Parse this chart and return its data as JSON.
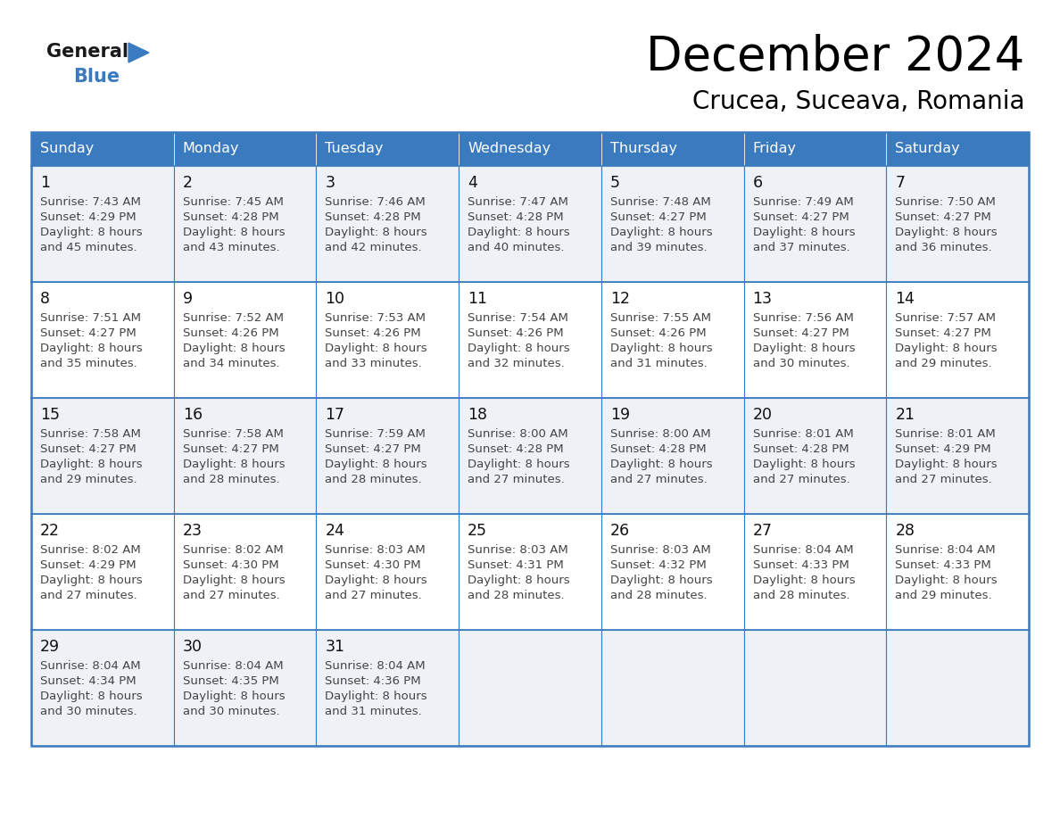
{
  "title": "December 2024",
  "subtitle": "Crucea, Suceava, Romania",
  "header_bg": "#3a7abf",
  "header_text": "#ffffff",
  "day_names": [
    "Sunday",
    "Monday",
    "Tuesday",
    "Wednesday",
    "Thursday",
    "Friday",
    "Saturday"
  ],
  "row_bg_even": "#eef2f7",
  "row_bg_odd": "#ffffff",
  "border_color": "#3a7abf",
  "text_color": "#444444",
  "day_num_color": "#111111",
  "logo_general_color": "#1a1a1a",
  "logo_blue_color": "#3a7abf",
  "cells": [
    {
      "day": 1,
      "row": 0,
      "col": 0,
      "sunrise": "7:43 AM",
      "sunset": "4:29 PM",
      "daylight_suffix": "45 minutes."
    },
    {
      "day": 2,
      "row": 0,
      "col": 1,
      "sunrise": "7:45 AM",
      "sunset": "4:28 PM",
      "daylight_suffix": "43 minutes."
    },
    {
      "day": 3,
      "row": 0,
      "col": 2,
      "sunrise": "7:46 AM",
      "sunset": "4:28 PM",
      "daylight_suffix": "42 minutes."
    },
    {
      "day": 4,
      "row": 0,
      "col": 3,
      "sunrise": "7:47 AM",
      "sunset": "4:28 PM",
      "daylight_suffix": "40 minutes."
    },
    {
      "day": 5,
      "row": 0,
      "col": 4,
      "sunrise": "7:48 AM",
      "sunset": "4:27 PM",
      "daylight_suffix": "39 minutes."
    },
    {
      "day": 6,
      "row": 0,
      "col": 5,
      "sunrise": "7:49 AM",
      "sunset": "4:27 PM",
      "daylight_suffix": "37 minutes."
    },
    {
      "day": 7,
      "row": 0,
      "col": 6,
      "sunrise": "7:50 AM",
      "sunset": "4:27 PM",
      "daylight_suffix": "36 minutes."
    },
    {
      "day": 8,
      "row": 1,
      "col": 0,
      "sunrise": "7:51 AM",
      "sunset": "4:27 PM",
      "daylight_suffix": "35 minutes."
    },
    {
      "day": 9,
      "row": 1,
      "col": 1,
      "sunrise": "7:52 AM",
      "sunset": "4:26 PM",
      "daylight_suffix": "34 minutes."
    },
    {
      "day": 10,
      "row": 1,
      "col": 2,
      "sunrise": "7:53 AM",
      "sunset": "4:26 PM",
      "daylight_suffix": "33 minutes."
    },
    {
      "day": 11,
      "row": 1,
      "col": 3,
      "sunrise": "7:54 AM",
      "sunset": "4:26 PM",
      "daylight_suffix": "32 minutes."
    },
    {
      "day": 12,
      "row": 1,
      "col": 4,
      "sunrise": "7:55 AM",
      "sunset": "4:26 PM",
      "daylight_suffix": "31 minutes."
    },
    {
      "day": 13,
      "row": 1,
      "col": 5,
      "sunrise": "7:56 AM",
      "sunset": "4:27 PM",
      "daylight_suffix": "30 minutes."
    },
    {
      "day": 14,
      "row": 1,
      "col": 6,
      "sunrise": "7:57 AM",
      "sunset": "4:27 PM",
      "daylight_suffix": "29 minutes."
    },
    {
      "day": 15,
      "row": 2,
      "col": 0,
      "sunrise": "7:58 AM",
      "sunset": "4:27 PM",
      "daylight_suffix": "29 minutes."
    },
    {
      "day": 16,
      "row": 2,
      "col": 1,
      "sunrise": "7:58 AM",
      "sunset": "4:27 PM",
      "daylight_suffix": "28 minutes."
    },
    {
      "day": 17,
      "row": 2,
      "col": 2,
      "sunrise": "7:59 AM",
      "sunset": "4:27 PM",
      "daylight_suffix": "28 minutes."
    },
    {
      "day": 18,
      "row": 2,
      "col": 3,
      "sunrise": "8:00 AM",
      "sunset": "4:28 PM",
      "daylight_suffix": "27 minutes."
    },
    {
      "day": 19,
      "row": 2,
      "col": 4,
      "sunrise": "8:00 AM",
      "sunset": "4:28 PM",
      "daylight_suffix": "27 minutes."
    },
    {
      "day": 20,
      "row": 2,
      "col": 5,
      "sunrise": "8:01 AM",
      "sunset": "4:28 PM",
      "daylight_suffix": "27 minutes."
    },
    {
      "day": 21,
      "row": 2,
      "col": 6,
      "sunrise": "8:01 AM",
      "sunset": "4:29 PM",
      "daylight_suffix": "27 minutes."
    },
    {
      "day": 22,
      "row": 3,
      "col": 0,
      "sunrise": "8:02 AM",
      "sunset": "4:29 PM",
      "daylight_suffix": "27 minutes."
    },
    {
      "day": 23,
      "row": 3,
      "col": 1,
      "sunrise": "8:02 AM",
      "sunset": "4:30 PM",
      "daylight_suffix": "27 minutes."
    },
    {
      "day": 24,
      "row": 3,
      "col": 2,
      "sunrise": "8:03 AM",
      "sunset": "4:30 PM",
      "daylight_suffix": "27 minutes."
    },
    {
      "day": 25,
      "row": 3,
      "col": 3,
      "sunrise": "8:03 AM",
      "sunset": "4:31 PM",
      "daylight_suffix": "28 minutes."
    },
    {
      "day": 26,
      "row": 3,
      "col": 4,
      "sunrise": "8:03 AM",
      "sunset": "4:32 PM",
      "daylight_suffix": "28 minutes."
    },
    {
      "day": 27,
      "row": 3,
      "col": 5,
      "sunrise": "8:04 AM",
      "sunset": "4:33 PM",
      "daylight_suffix": "28 minutes."
    },
    {
      "day": 28,
      "row": 3,
      "col": 6,
      "sunrise": "8:04 AM",
      "sunset": "4:33 PM",
      "daylight_suffix": "29 minutes."
    },
    {
      "day": 29,
      "row": 4,
      "col": 0,
      "sunrise": "8:04 AM",
      "sunset": "4:34 PM",
      "daylight_suffix": "30 minutes."
    },
    {
      "day": 30,
      "row": 4,
      "col": 1,
      "sunrise": "8:04 AM",
      "sunset": "4:35 PM",
      "daylight_suffix": "30 minutes."
    },
    {
      "day": 31,
      "row": 4,
      "col": 2,
      "sunrise": "8:04 AM",
      "sunset": "4:36 PM",
      "daylight_suffix": "31 minutes."
    }
  ],
  "figwidth": 11.88,
  "figheight": 9.18,
  "dpi": 100
}
